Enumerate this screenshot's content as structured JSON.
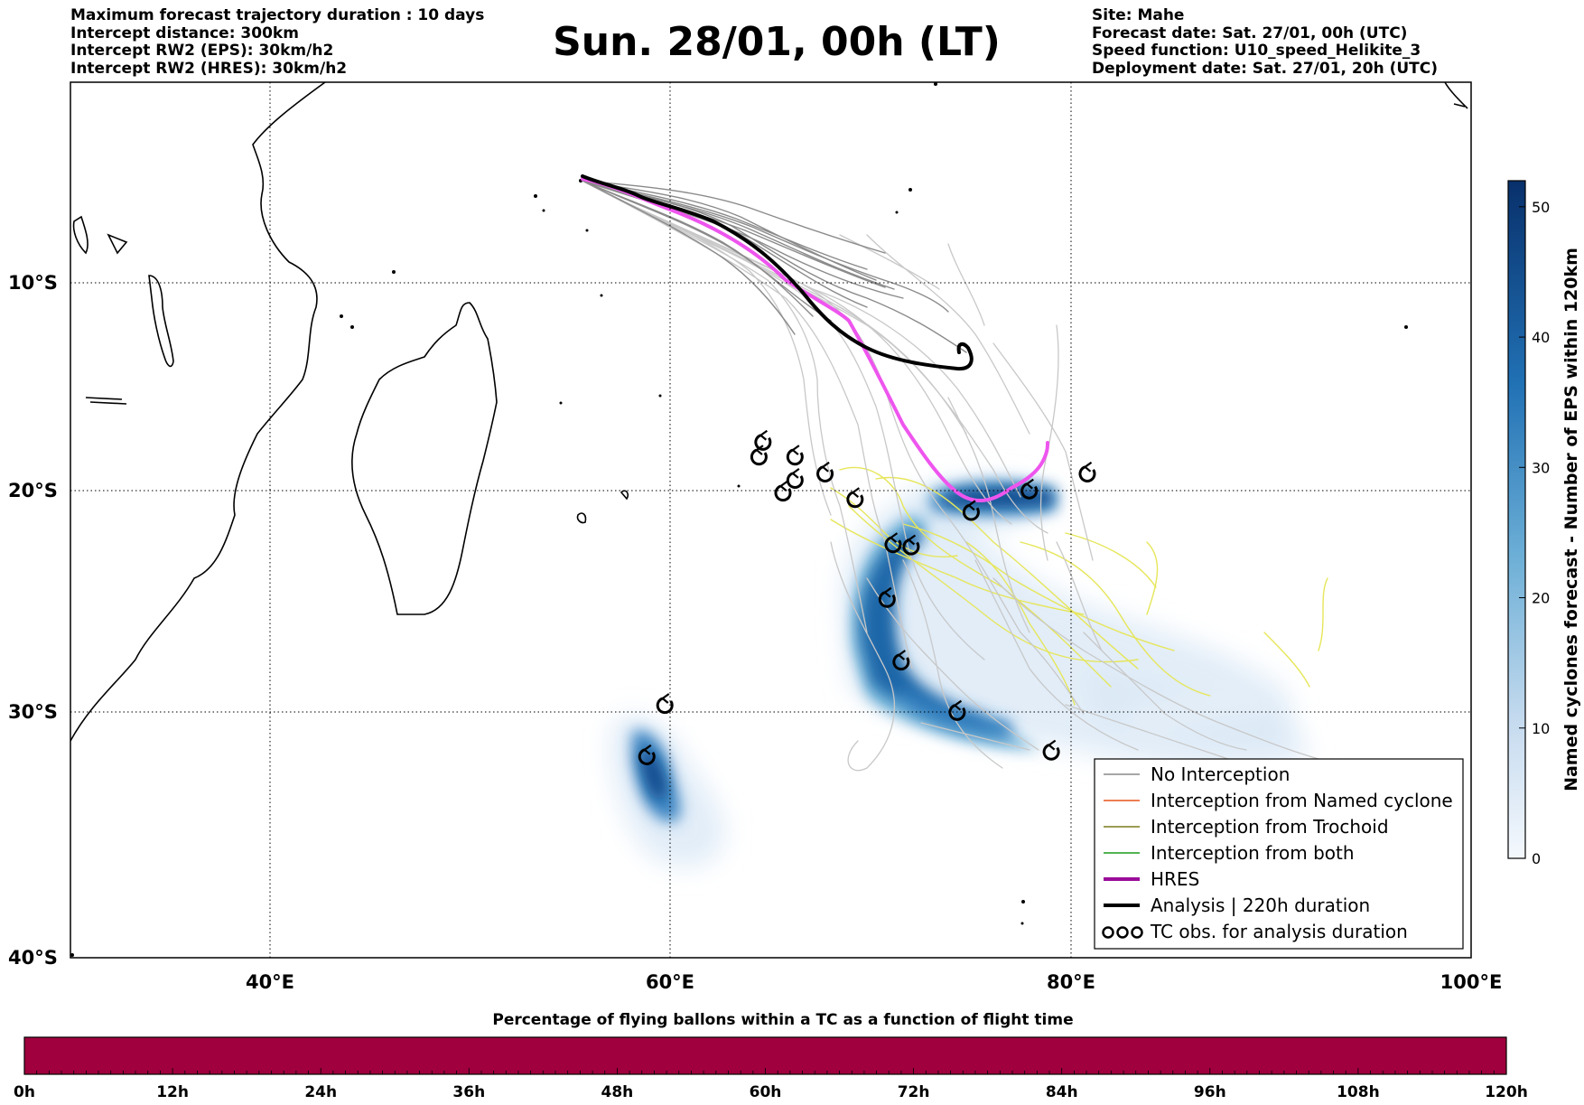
{
  "header_left": [
    "Maximum forecast trajectory duration : 10 days",
    "Intercept distance: 300km",
    "Intercept RW2 (EPS):  30km/h2",
    "Intercept RW2 (HRES): 30km/h2"
  ],
  "header_right": [
    "Site: Mahe",
    "Forecast date: Sat. 27/01, 00h (UTC)",
    "Speed function: U10_speed_Helikite_3",
    "Deployment date: Sat. 27/01, 20h (UTC)"
  ],
  "title": "Sun. 28/01, 00h (LT)",
  "map": {
    "lon_range": [
      30,
      100
    ],
    "lat_range": [
      -40,
      0
    ],
    "lat_labels": [
      "10°S",
      "20°S",
      "30°S",
      "40°S"
    ],
    "lon_labels": [
      "40°E",
      "60°E",
      "80°E",
      "100°E"
    ],
    "colors": {
      "eps": "#888888",
      "eps_light": "#c8c8c8",
      "trochoid": "#e6e65a",
      "hres": "#ee55ee",
      "analysis": "#000000"
    }
  },
  "legend": {
    "items": [
      {
        "label": "No Interception",
        "color": "#888888"
      },
      {
        "label": "Interception from Named cyclone",
        "color": "#e8531a"
      },
      {
        "label": "Interception from Trochoid",
        "color": "#7a7a1a"
      },
      {
        "label": "Interception from both",
        "color": "#1a9a1a"
      },
      {
        "label": "HRES",
        "color": "#9b0c9b"
      },
      {
        "label": "Analysis | 220h duration",
        "color": "#000000"
      },
      {
        "label": "TC obs. for analysis duration",
        "color": "#000000"
      }
    ]
  },
  "colorbar": {
    "title": "Named cyclones forecast - Number of EPS within 120km",
    "ticks": [
      "0",
      "10",
      "20",
      "30",
      "40",
      "50"
    ],
    "range": [
      0,
      52
    ]
  },
  "time_bar": {
    "title": "Percentage of flying ballons within a TC as a function of flight time",
    "ticks": [
      "0h",
      "12h",
      "24h",
      "36h",
      "48h",
      "60h",
      "72h",
      "84h",
      "96h",
      "108h",
      "120h"
    ],
    "fill_color": "#a0003e"
  },
  "tc_obs_lonlat": [
    [
      64.6,
      -17.7
    ],
    [
      64.4,
      -18.4
    ],
    [
      66.2,
      -18.4
    ],
    [
      66.2,
      -19.5
    ],
    [
      65.6,
      -20.1
    ],
    [
      67.7,
      -19.2
    ],
    [
      69.2,
      -20.4
    ],
    [
      71.1,
      -22.5
    ],
    [
      72.0,
      -22.6
    ],
    [
      70.8,
      -25.0
    ],
    [
      71.5,
      -27.8
    ],
    [
      74.3,
      -30.0
    ],
    [
      75.0,
      -21.0
    ],
    [
      77.9,
      -20.0
    ],
    [
      80.8,
      -19.2
    ],
    [
      79.0,
      -31.7
    ],
    [
      59.7,
      -29.7
    ],
    [
      58.8,
      -31.9
    ]
  ]
}
